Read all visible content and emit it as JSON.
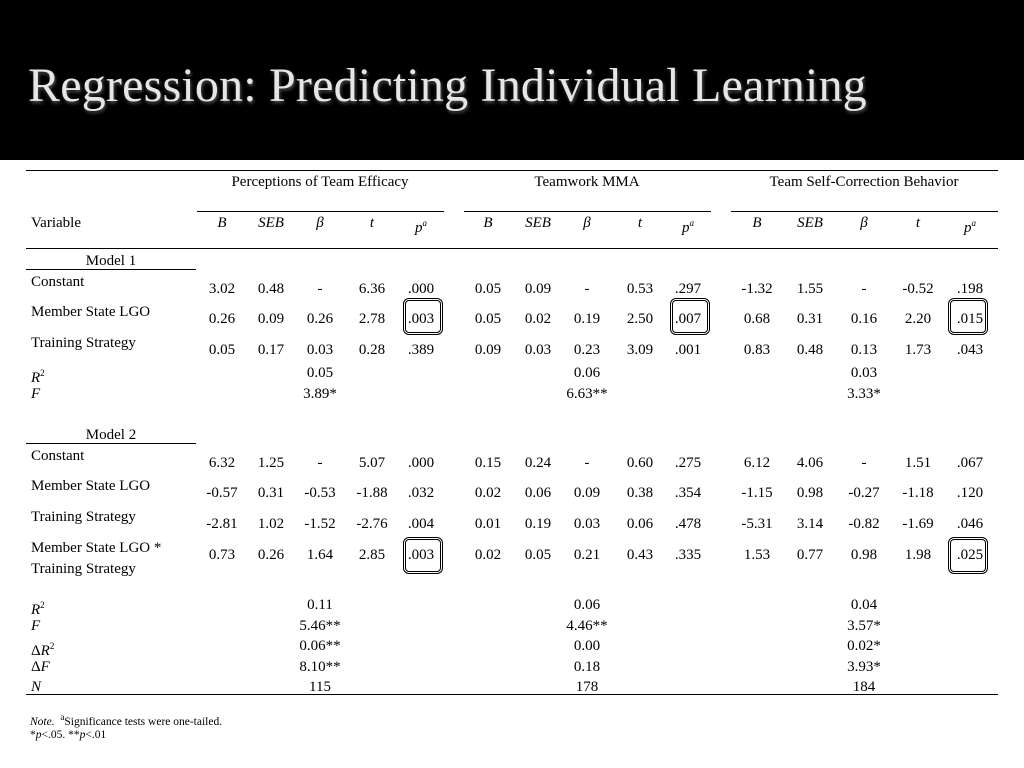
{
  "title": "Regression: Predicting Individual Learning",
  "groups": [
    "Perceptions of Team Efficacy",
    "Teamwork MMA",
    "Team Self-Correction Behavior"
  ],
  "variable_label": "Variable",
  "col_heads": [
    "B",
    "SEB",
    "β",
    "t",
    "p"
  ],
  "p_superscript": "a",
  "highlighted_cells": [
    ".003",
    ".007",
    ".015",
    ".003",
    ".025"
  ],
  "model1": {
    "label": "Model 1",
    "rows": [
      {
        "label": "Constant",
        "vals": [
          "3.02",
          "0.48",
          "-",
          "6.36",
          ".000",
          "0.05",
          "0.09",
          "-",
          "0.53",
          ".297",
          "-1.32",
          "1.55",
          "-",
          "-0.52",
          ".198"
        ]
      },
      {
        "label": "Member State LGO",
        "vals": [
          "0.26",
          "0.09",
          "0.26",
          "2.78",
          ".003",
          "0.05",
          "0.02",
          "0.19",
          "2.50",
          ".007",
          "0.68",
          "0.31",
          "0.16",
          "2.20",
          ".015"
        ]
      },
      {
        "label": "Training Strategy",
        "vals": [
          "0.05",
          "0.17",
          "0.03",
          "0.28",
          ".389",
          "0.09",
          "0.03",
          "0.23",
          "3.09",
          ".001",
          "0.83",
          "0.48",
          "0.13",
          "1.73",
          ".043"
        ]
      }
    ],
    "stats": [
      {
        "label": "R",
        "sup": "2",
        "vals": [
          "0.05",
          "0.06",
          "0.03"
        ]
      },
      {
        "label": "F",
        "sup": "",
        "vals": [
          "3.89*",
          "6.63**",
          "3.33*"
        ]
      }
    ]
  },
  "model2": {
    "label": "Model 2",
    "rows": [
      {
        "label": "Constant",
        "vals": [
          "6.32",
          "1.25",
          "-",
          "5.07",
          ".000",
          "0.15",
          "0.24",
          "-",
          "0.60",
          ".275",
          "6.12",
          "4.06",
          "-",
          "1.51",
          ".067"
        ]
      },
      {
        "label": "Member State LGO",
        "vals": [
          "-0.57",
          "0.31",
          "-0.53",
          "-1.88",
          ".032",
          "0.02",
          "0.06",
          "0.09",
          "0.38",
          ".354",
          "-1.15",
          "0.98",
          "-0.27",
          "-1.18",
          ".120"
        ]
      },
      {
        "label": "Training Strategy",
        "vals": [
          "-2.81",
          "1.02",
          "-1.52",
          "-2.76",
          ".004",
          "0.01",
          "0.19",
          "0.03",
          "0.06",
          ".478",
          "-5.31",
          "3.14",
          "-0.82",
          "-1.69",
          ".046"
        ]
      },
      {
        "label": "Member State LGO *",
        "label2": "Training Strategy",
        "vals": [
          "0.73",
          "0.26",
          "1.64",
          "2.85",
          ".003",
          "0.02",
          "0.05",
          "0.21",
          "0.43",
          ".335",
          "1.53",
          "0.77",
          "0.98",
          "1.98",
          ".025"
        ]
      }
    ],
    "stats": [
      {
        "label": "R",
        "sup": "2",
        "vals": [
          "0.11",
          "0.06",
          "0.04"
        ]
      },
      {
        "label": "F",
        "sup": "",
        "vals": [
          "5.46**",
          "4.46**",
          "3.57*"
        ]
      },
      {
        "label": "ΔR",
        "sup": "2",
        "vals": [
          "0.06**",
          "0.00",
          "0.02*"
        ]
      },
      {
        "label": "ΔF",
        "sup": "",
        "vals": [
          "8.10**",
          "0.18",
          "3.93*"
        ]
      },
      {
        "label": "N",
        "sup": "",
        "vals": [
          "115",
          "178",
          "184"
        ]
      }
    ]
  },
  "note": {
    "label": "Note.",
    "sup": "a",
    "text": "Significance tests were one-tailed.",
    "line2": "*p<.05. **p<.01"
  }
}
